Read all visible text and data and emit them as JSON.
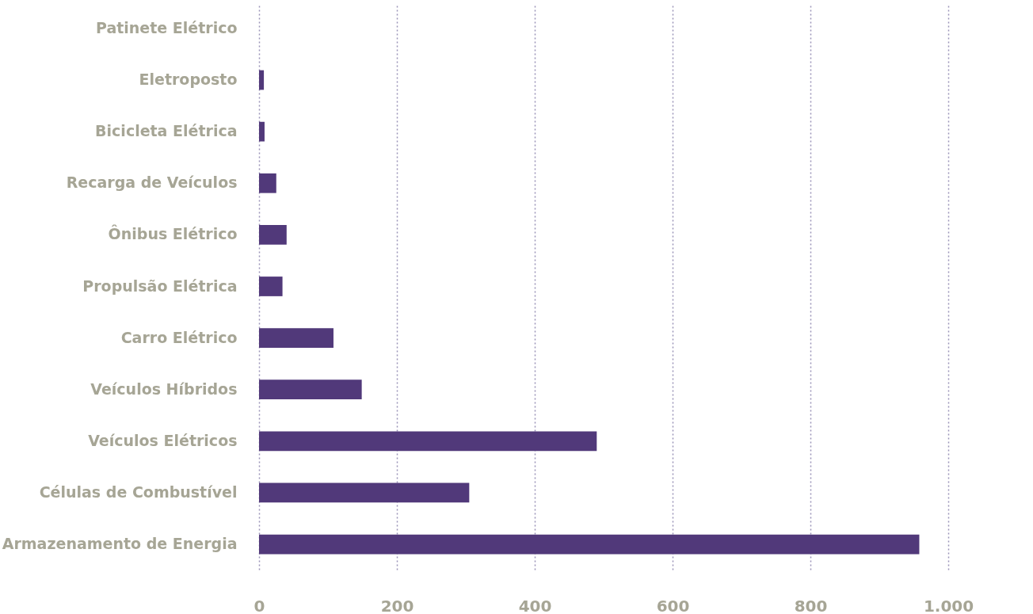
{
  "chart_data": {
    "type": "bar",
    "orientation": "horizontal",
    "categories": [
      "Patinete Elétrico",
      "Eletroposto",
      "Bicicleta Elétrica",
      "Recarga de Veículos",
      "Ônibus Elétrico",
      "Propulsão Elétrica",
      "Carro Elétrico",
      "Veículos Híbridos",
      "Veículos Elétricos",
      "Células de Combustível",
      "Armazenamento de Energia"
    ],
    "values": [
      0,
      7,
      8,
      25,
      40,
      34,
      108,
      149,
      490,
      305,
      958
    ],
    "color": "#51397a",
    "xlim": [
      0,
      1000
    ],
    "xticks": [
      0,
      200,
      400,
      600,
      800,
      {
        "value": 1000,
        "label": "1.000"
      }
    ],
    "grid": "x"
  }
}
